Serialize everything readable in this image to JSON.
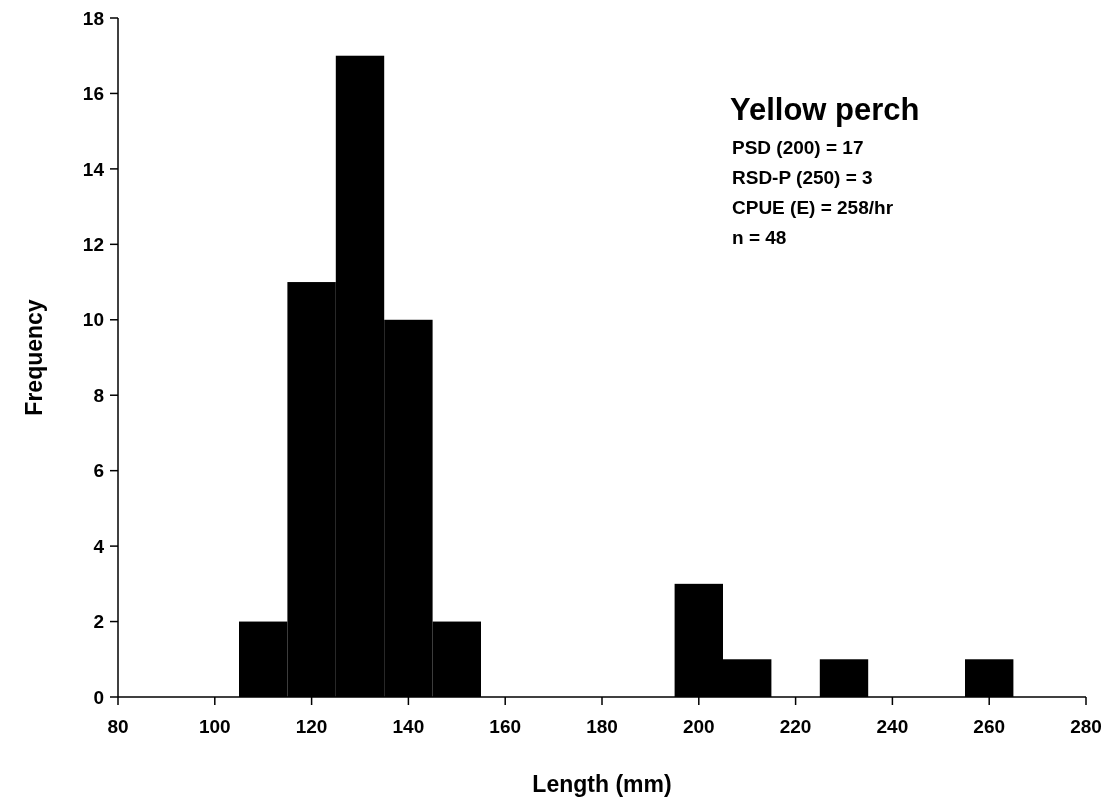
{
  "chart_data": {
    "type": "histogram",
    "title": "Yellow perch",
    "annotations": [
      "PSD (200) = 17",
      "RSD-P (250) = 3",
      "CPUE (E) = 258/hr",
      "n = 48"
    ],
    "xlabel": "Length (mm)",
    "ylabel": "Frequency",
    "bins": [
      105,
      115,
      125,
      135,
      145,
      155,
      165,
      175,
      185,
      195,
      205,
      215,
      225,
      235,
      245,
      255,
      265
    ],
    "values": [
      2,
      11,
      17,
      10,
      2,
      0,
      0,
      0,
      0,
      3,
      1,
      0,
      1,
      0,
      0,
      1
    ],
    "color": "#000000",
    "xlim": [
      80,
      280
    ],
    "xticks": [
      80,
      100,
      120,
      140,
      160,
      180,
      200,
      220,
      240,
      260,
      280
    ],
    "ylim": [
      0,
      18
    ],
    "yticks": [
      0,
      2,
      4,
      6,
      8,
      10,
      12,
      14,
      16,
      18
    ],
    "grid": false
  }
}
